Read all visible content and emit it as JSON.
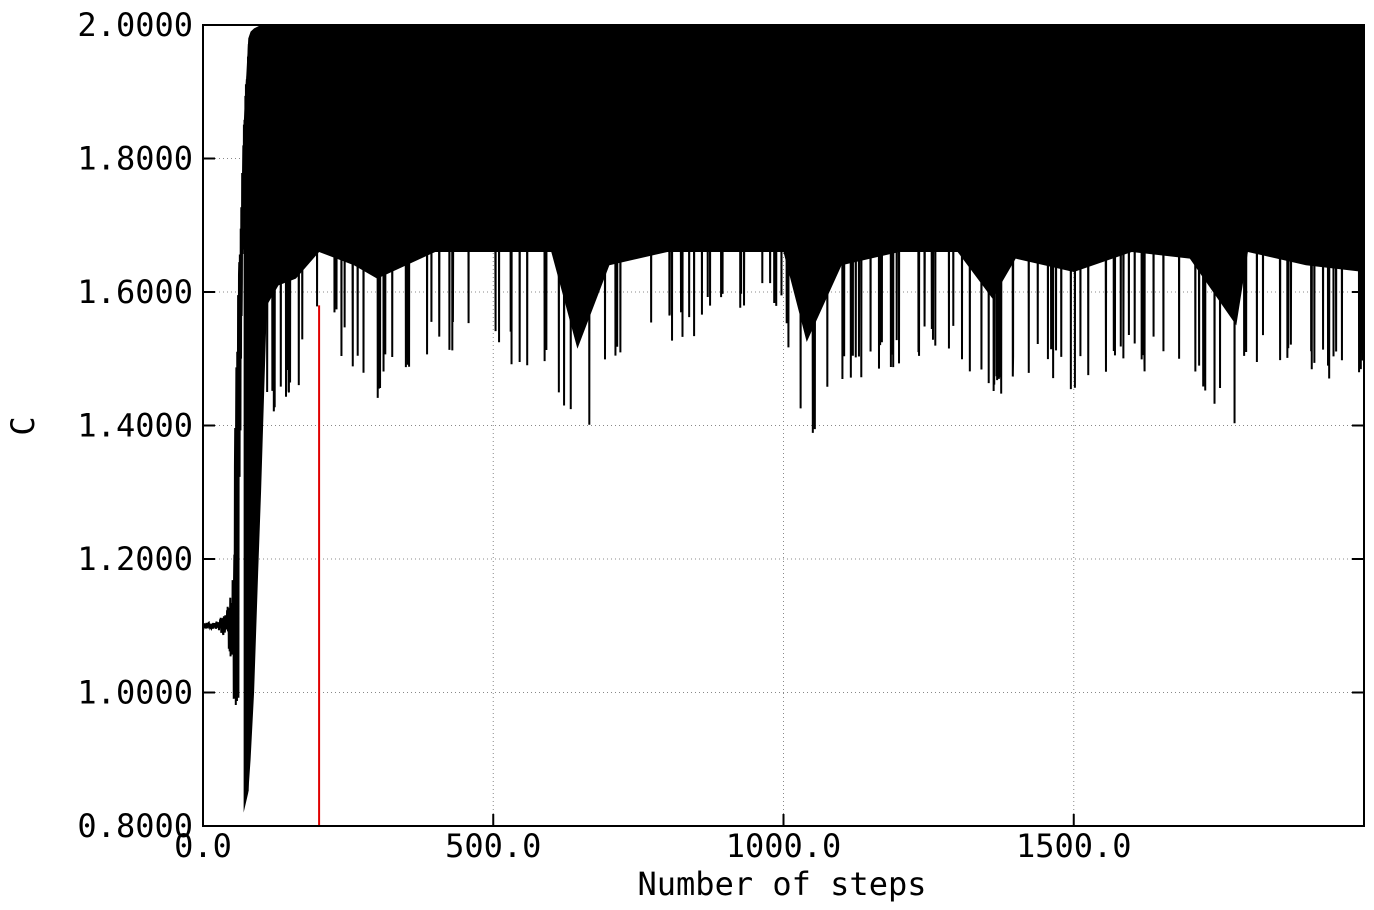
{
  "chart_data": {
    "type": "line",
    "title": "",
    "xlabel": "Number of steps",
    "ylabel": "C",
    "xlim": [
      0,
      2000
    ],
    "ylim": [
      0.8,
      2.0
    ],
    "grid": true,
    "xticks": [
      0,
      500,
      1000,
      1500
    ],
    "xtick_labels": [
      "0.0",
      "500.0",
      "1000.0",
      "1500.0"
    ],
    "yticks": [
      0.8,
      1.0,
      1.2,
      1.4,
      1.6,
      1.8,
      2.0
    ],
    "ytick_labels": [
      "0.8000",
      "1.0000",
      "1.2000",
      "1.4000",
      "1.6000",
      "1.8000",
      "2.0000"
    ],
    "series": [
      {
        "color": "#000000",
        "description_points": {
          "x": [
            0,
            20,
            40,
            50,
            60,
            70,
            78,
            82,
            88,
            95,
            100,
            110,
            130,
            160,
            200,
            260,
            300,
            400,
            500,
            600,
            645,
            700,
            800,
            900,
            1000,
            1040,
            1100,
            1200,
            1300,
            1360,
            1400,
            1500,
            1600,
            1700,
            1780,
            1800,
            1900,
            2000
          ],
          "upper": [
            1.11,
            1.11,
            1.13,
            1.17,
            1.6,
            1.85,
            1.98,
            1.99,
            1.995,
            1.998,
            2.0,
            2.0,
            2.0,
            2.0,
            2.0,
            2.0,
            2.0,
            2.0,
            2.0,
            2.0,
            2.0,
            2.0,
            2.0,
            2.0,
            2.0,
            2.0,
            2.0,
            2.0,
            2.0,
            2.0,
            2.0,
            2.0,
            2.0,
            2.0,
            2.0,
            2.0,
            2.0,
            2.0
          ],
          "lower": [
            1.1,
            1.1,
            1.08,
            1.02,
            0.96,
            0.82,
            0.85,
            0.9,
            1.0,
            1.18,
            1.3,
            1.4,
            1.43,
            1.44,
            1.58,
            1.46,
            1.44,
            1.5,
            1.49,
            1.48,
            1.335,
            1.46,
            1.52,
            1.55,
            1.56,
            1.345,
            1.46,
            1.48,
            1.5,
            1.41,
            1.47,
            1.45,
            1.48,
            1.47,
            1.37,
            1.49,
            1.46,
            1.45
          ]
        }
      }
    ],
    "vertical_marker": {
      "x": 200,
      "color": "#e00000"
    }
  }
}
